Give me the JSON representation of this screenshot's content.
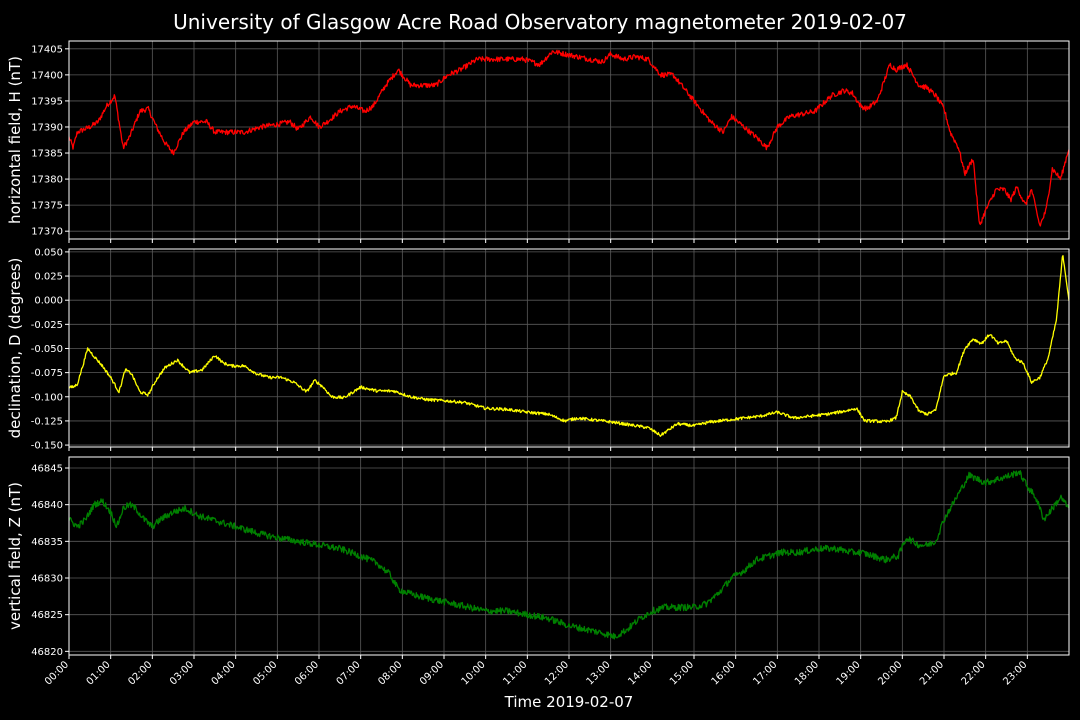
{
  "title": "University of Glasgow Acre Road Observatory magnetometer 2019-02-07",
  "xlabel": "Time 2019-02-07",
  "colors": {
    "background": "#000000",
    "grid": "#5a5a5a",
    "axes": "#ffffff",
    "text": "#ffffff"
  },
  "chart_data": [
    {
      "type": "line",
      "ylabel": "horizontal field, H (nT)",
      "color": "#ff0000",
      "ylim": [
        17368.5,
        17406.5
      ],
      "yticks": [
        17370,
        17375,
        17380,
        17385,
        17390,
        17395,
        17400,
        17405
      ],
      "ytick_labels": [
        "17370",
        "17375",
        "17380",
        "17385",
        "17390",
        "17395",
        "17400",
        "17405"
      ],
      "noise": 0.5,
      "x": [
        0,
        0.1,
        0.2,
        0.5,
        0.7,
        0.9,
        1.1,
        1.3,
        1.45,
        1.7,
        1.9,
        2.1,
        2.3,
        2.5,
        2.75,
        3,
        3.3,
        3.5,
        3.8,
        4.2,
        4.6,
        5,
        5.3,
        5.5,
        5.8,
        6,
        6.2,
        6.5,
        6.8,
        7.1,
        7.3,
        7.6,
        7.9,
        8.2,
        8.5,
        8.8,
        9.1,
        9.4,
        9.6,
        9.8,
        10.1,
        10.5,
        10.9,
        11.3,
        11.6,
        11.9,
        12.2,
        12.5,
        12.8,
        13,
        13.3,
        13.6,
        13.9,
        14.2,
        14.5,
        14.8,
        15.1,
        15.4,
        15.7,
        15.9,
        16.2,
        16.5,
        16.75,
        17,
        17.3,
        17.6,
        17.9,
        18.3,
        18.6,
        18.8,
        19,
        19.15,
        19.4,
        19.7,
        19.85,
        20.1,
        20.4,
        20.6,
        20.8,
        21,
        21.15,
        21.35,
        21.5,
        21.7,
        21.85,
        22,
        22.25,
        22.45,
        22.6,
        22.75,
        22.95,
        23.1,
        23.3,
        23.45,
        23.6,
        23.8,
        24
      ],
      "y": [
        17388,
        17386,
        17389,
        17390,
        17391,
        17394,
        17396,
        17386,
        17388,
        17393,
        17393.5,
        17390,
        17387,
        17385,
        17389,
        17391,
        17391,
        17389,
        17389,
        17389,
        17390,
        17390.5,
        17391,
        17389.5,
        17392,
        17390,
        17391,
        17393,
        17394,
        17393,
        17394,
        17398,
        17401,
        17398,
        17398,
        17398,
        17400,
        17401,
        17402,
        17403,
        17403,
        17403,
        17403,
        17402,
        17404.5,
        17404,
        17403.5,
        17403,
        17402.5,
        17404,
        17403,
        17403.5,
        17403,
        17400,
        17400,
        17397,
        17394,
        17391,
        17389,
        17392,
        17390,
        17388,
        17386,
        17390,
        17392,
        17392.5,
        17393,
        17396,
        17397,
        17396.5,
        17394,
        17393.5,
        17395,
        17402,
        17401,
        17402,
        17398,
        17397.5,
        17396,
        17393.5,
        17389,
        17386,
        17381,
        17384,
        17371,
        17374,
        17378,
        17378,
        17376,
        17378.5,
        17375,
        17378,
        17371,
        17374,
        17382,
        17380,
        17386
      ]
    },
    {
      "type": "line",
      "ylabel": "declination, D (degrees)",
      "color": "#ffff00",
      "ylim": [
        -0.152,
        0.053
      ],
      "yticks": [
        -0.15,
        -0.125,
        -0.1,
        -0.075,
        -0.05,
        -0.025,
        0.0,
        0.025,
        0.05
      ],
      "ytick_labels": [
        "-0.150",
        "-0.125",
        "-0.100",
        "-0.075",
        "-0.050",
        "-0.025",
        "0.000",
        "0.025",
        "0.050"
      ],
      "noise": 0.0015,
      "x": [
        0,
        0.1,
        0.2,
        0.35,
        0.45,
        0.6,
        0.8,
        1,
        1.2,
        1.35,
        1.5,
        1.7,
        1.9,
        2.1,
        2.3,
        2.6,
        2.9,
        3.2,
        3.5,
        3.7,
        3.9,
        4.2,
        4.5,
        4.8,
        5.1,
        5.4,
        5.7,
        5.9,
        6.1,
        6.3,
        6.6,
        7,
        7.4,
        7.8,
        8.2,
        8.6,
        9,
        9.5,
        10,
        10.5,
        11,
        11.5,
        11.9,
        12.2,
        12.6,
        13,
        13.3,
        13.6,
        13.9,
        14.2,
        14.6,
        15,
        15.4,
        15.8,
        16.2,
        16.6,
        17,
        17.4,
        17.8,
        18.2,
        18.6,
        18.9,
        19.1,
        19.3,
        19.6,
        19.85,
        20,
        20.2,
        20.4,
        20.6,
        20.8,
        21,
        21.1,
        21.3,
        21.5,
        21.7,
        21.9,
        22.1,
        22.3,
        22.5,
        22.7,
        22.9,
        23.1,
        23.3,
        23.5,
        23.7,
        23.85,
        24
      ],
      "y": [
        -0.09,
        -0.09,
        -0.087,
        -0.065,
        -0.05,
        -0.058,
        -0.068,
        -0.08,
        -0.095,
        -0.072,
        -0.076,
        -0.095,
        -0.098,
        -0.082,
        -0.07,
        -0.062,
        -0.075,
        -0.072,
        -0.057,
        -0.065,
        -0.068,
        -0.068,
        -0.076,
        -0.08,
        -0.08,
        -0.085,
        -0.095,
        -0.083,
        -0.09,
        -0.1,
        -0.101,
        -0.09,
        -0.094,
        -0.094,
        -0.1,
        -0.103,
        -0.104,
        -0.106,
        -0.112,
        -0.113,
        -0.116,
        -0.118,
        -0.125,
        -0.122,
        -0.124,
        -0.126,
        -0.128,
        -0.13,
        -0.132,
        -0.14,
        -0.128,
        -0.13,
        -0.126,
        -0.124,
        -0.122,
        -0.12,
        -0.116,
        -0.122,
        -0.12,
        -0.118,
        -0.115,
        -0.112,
        -0.125,
        -0.125,
        -0.126,
        -0.122,
        -0.095,
        -0.1,
        -0.115,
        -0.118,
        -0.114,
        -0.078,
        -0.077,
        -0.075,
        -0.05,
        -0.04,
        -0.045,
        -0.035,
        -0.045,
        -0.042,
        -0.06,
        -0.065,
        -0.085,
        -0.08,
        -0.06,
        -0.02,
        0.048,
        0.0
      ]
    },
    {
      "type": "line",
      "ylabel": "vertical field, Z (nT)",
      "color": "#008000",
      "ylim": [
        46819.5,
        46846.5
      ],
      "yticks": [
        46820,
        46825,
        46830,
        46835,
        46840,
        46845
      ],
      "ytick_labels": [
        "46820",
        "46825",
        "46830",
        "46835",
        "46840",
        "46845"
      ],
      "noise": 0.45,
      "x": [
        0,
        0.2,
        0.4,
        0.6,
        0.8,
        1,
        1.15,
        1.3,
        1.45,
        1.6,
        1.8,
        2,
        2.2,
        2.5,
        2.8,
        3.1,
        3.4,
        3.7,
        4,
        4.3,
        4.6,
        5,
        5.5,
        6,
        6.5,
        7,
        7.4,
        7.7,
        7.9,
        8.1,
        8.4,
        8.8,
        9.2,
        9.6,
        10,
        10.5,
        11,
        11.5,
        12,
        12.4,
        12.8,
        13.1,
        13.4,
        13.7,
        14,
        14.3,
        14.6,
        15,
        15.3,
        15.6,
        15.9,
        16.2,
        16.5,
        16.8,
        17.1,
        17.5,
        18,
        18.4,
        18.8,
        19,
        19.3,
        19.6,
        19.9,
        20.1,
        20.4,
        20.6,
        20.8,
        21,
        21.2,
        21.4,
        21.6,
        21.8,
        22,
        22.3,
        22.6,
        22.8,
        23,
        23.2,
        23.4,
        23.6,
        23.8,
        24
      ],
      "y": [
        46838,
        46837,
        46838,
        46840,
        46840.5,
        46839,
        46837,
        46839.5,
        46840,
        46839.5,
        46838,
        46837,
        46838,
        46839,
        46839.5,
        46838.5,
        46838,
        46837.5,
        46837,
        46836.5,
        46836,
        46835.5,
        46835,
        46834.5,
        46834,
        46833,
        46832,
        46830.5,
        46828.5,
        46828,
        46827.5,
        46827,
        46826.5,
        46826,
        46825.5,
        46825.5,
        46825,
        46824.5,
        46823.5,
        46823,
        46822.5,
        46822,
        46823,
        46824.5,
        46825.5,
        46826,
        46826,
        46826,
        46826.5,
        46828,
        46830,
        46831,
        46832.5,
        46833,
        46833.5,
        46833.5,
        46834,
        46834,
        46833.5,
        46833.5,
        46833,
        46832.5,
        46833,
        46835.5,
        46834.5,
        46834.5,
        46835,
        46838,
        46840,
        46842,
        46844,
        46843.5,
        46843,
        46843.5,
        46844,
        46844.5,
        46842.5,
        46841,
        46838,
        46839.5,
        46841,
        46839.5
      ]
    }
  ],
  "xaxis": {
    "xlim": [
      0,
      24
    ],
    "ticks": [
      0,
      1,
      2,
      3,
      4,
      5,
      6,
      7,
      8,
      9,
      10,
      11,
      12,
      13,
      14,
      15,
      16,
      17,
      18,
      19,
      20,
      21,
      22,
      23
    ],
    "tick_labels": [
      "00:00",
      "01:00",
      "02:00",
      "03:00",
      "04:00",
      "05:00",
      "06:00",
      "07:00",
      "08:00",
      "09:00",
      "10:00",
      "11:00",
      "12:00",
      "13:00",
      "14:00",
      "15:00",
      "16:00",
      "17:00",
      "18:00",
      "19:00",
      "20:00",
      "21:00",
      "22:00",
      "23:00"
    ]
  }
}
